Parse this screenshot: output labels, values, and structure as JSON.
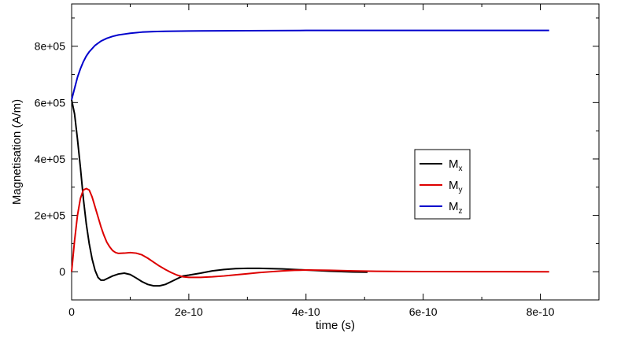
{
  "chart_data": {
    "type": "line",
    "title": "",
    "xlabel": "time (s)",
    "ylabel": "Magnetisation (A/m)",
    "xlim": [
      0,
      9e-10
    ],
    "ylim": [
      -100000,
      950000
    ],
    "x_ticks": [
      {
        "value": 0,
        "label": "0"
      },
      {
        "value": 2e-10,
        "label": "2e-10"
      },
      {
        "value": 4e-10,
        "label": "4e-10"
      },
      {
        "value": 6e-10,
        "label": "6e-10"
      },
      {
        "value": 8e-10,
        "label": "8e-10"
      }
    ],
    "y_ticks": [
      {
        "value": 0,
        "label": "0"
      },
      {
        "value": 200000,
        "label": "2e+05"
      },
      {
        "value": 400000,
        "label": "4e+05"
      },
      {
        "value": 600000,
        "label": "6e+05"
      },
      {
        "value": 800000,
        "label": "8e+05"
      }
    ],
    "grid": false,
    "legend_position": "center-right",
    "series": [
      {
        "name": "M",
        "sub": "x",
        "color": "#000000",
        "x": [
          0,
          5e-12,
          1e-11,
          1.5e-11,
          2e-11,
          2.5e-11,
          3e-11,
          3.5e-11,
          4e-11,
          4.5e-11,
          5e-11,
          5.5e-11,
          6e-11,
          7e-11,
          8e-11,
          9e-11,
          1e-10,
          1.1e-10,
          1.2e-10,
          1.3e-10,
          1.4e-10,
          1.5e-10,
          1.6e-10,
          1.7e-10,
          1.8e-10,
          1.9e-10,
          2e-10,
          2.2e-10,
          2.4e-10,
          2.6e-10,
          2.8e-10,
          3e-10,
          3.2e-10,
          3.4e-10,
          3.6e-10,
          3.8e-10,
          4e-10,
          4.2e-10,
          4.4e-10,
          4.6e-10,
          4.8e-10,
          5.05e-10
        ],
        "y": [
          610000,
          560000,
          470000,
          370000,
          260000,
          170000,
          100000,
          45000,
          5000,
          -20000,
          -30000,
          -30000,
          -25000,
          -15000,
          -8000,
          -5000,
          -10000,
          -22000,
          -35000,
          -45000,
          -50000,
          -50000,
          -45000,
          -35000,
          -25000,
          -15000,
          -12000,
          -5000,
          3000,
          8000,
          11000,
          12000,
          12000,
          11000,
          10000,
          8000,
          6000,
          4000,
          2000,
          500,
          -1000,
          -1500
        ]
      },
      {
        "name": "M",
        "sub": "y",
        "color": "#dd0000",
        "x": [
          0,
          5e-12,
          1e-11,
          1.5e-11,
          2e-11,
          2.5e-11,
          3e-11,
          3.5e-11,
          4e-11,
          4.5e-11,
          5e-11,
          5.5e-11,
          6e-11,
          6.5e-11,
          7e-11,
          7.5e-11,
          8e-11,
          9e-11,
          1e-10,
          1.1e-10,
          1.2e-10,
          1.3e-10,
          1.4e-10,
          1.5e-10,
          1.6e-10,
          1.7e-10,
          1.8e-10,
          1.9e-10,
          2e-10,
          2.2e-10,
          2.4e-10,
          2.6e-10,
          2.8e-10,
          3e-10,
          3.2e-10,
          3.4e-10,
          3.6e-10,
          3.8e-10,
          4e-10,
          4.4e-10,
          4.8e-10,
          5.2e-10,
          6e-10,
          7e-10,
          8.15e-10
        ],
        "y": [
          0,
          110000,
          200000,
          260000,
          290000,
          295000,
          290000,
          265000,
          230000,
          195000,
          160000,
          130000,
          105000,
          88000,
          75000,
          68000,
          65000,
          66000,
          68000,
          66000,
          60000,
          48000,
          34000,
          20000,
          8000,
          -3000,
          -12000,
          -18000,
          -20000,
          -20000,
          -18000,
          -15000,
          -11000,
          -7000,
          -3000,
          0,
          3000,
          5000,
          6000,
          5000,
          3000,
          1500,
          500,
          200,
          0
        ]
      },
      {
        "name": "M",
        "sub": "z",
        "color": "#0000cc",
        "x": [
          0,
          5e-12,
          1e-11,
          1.5e-11,
          2e-11,
          2.5e-11,
          3e-11,
          4e-11,
          5e-11,
          6e-11,
          7e-11,
          8e-11,
          9e-11,
          1e-10,
          1.2e-10,
          1.4e-10,
          1.6e-10,
          2e-10,
          3e-10,
          4e-10,
          5e-10,
          6e-10,
          7e-10,
          8.15e-10
        ],
        "y": [
          610000,
          650000,
          690000,
          720000,
          745000,
          765000,
          780000,
          803000,
          818000,
          828000,
          835000,
          840000,
          843000,
          846000,
          850000,
          852000,
          853000,
          854000,
          855000,
          856000,
          856000,
          856000,
          856000,
          856000
        ]
      }
    ]
  }
}
